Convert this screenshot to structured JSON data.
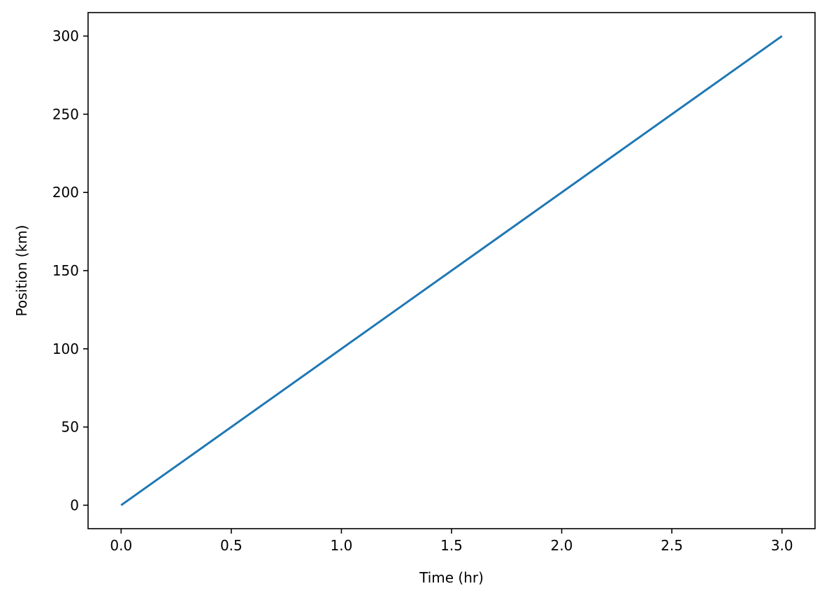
{
  "chart_data": {
    "type": "line",
    "title": "",
    "xlabel": "Time (hr)",
    "ylabel": "Position (km)",
    "xlim": [
      -0.15,
      3.15
    ],
    "ylim": [
      -15,
      315
    ],
    "xticks": [
      0.0,
      0.5,
      1.0,
      1.5,
      2.0,
      2.5,
      3.0
    ],
    "xtick_labels": [
      "0.0",
      "0.5",
      "1.0",
      "1.5",
      "2.0",
      "2.5",
      "3.0"
    ],
    "yticks": [
      0,
      50,
      100,
      150,
      200,
      250,
      300
    ],
    "ytick_labels": [
      "0",
      "50",
      "100",
      "150",
      "200",
      "250",
      "300"
    ],
    "grid": false,
    "legend": "none",
    "series": [
      {
        "color": "#1f77b4",
        "x": [
          0.0,
          3.0
        ],
        "y": [
          0,
          300
        ]
      }
    ]
  }
}
